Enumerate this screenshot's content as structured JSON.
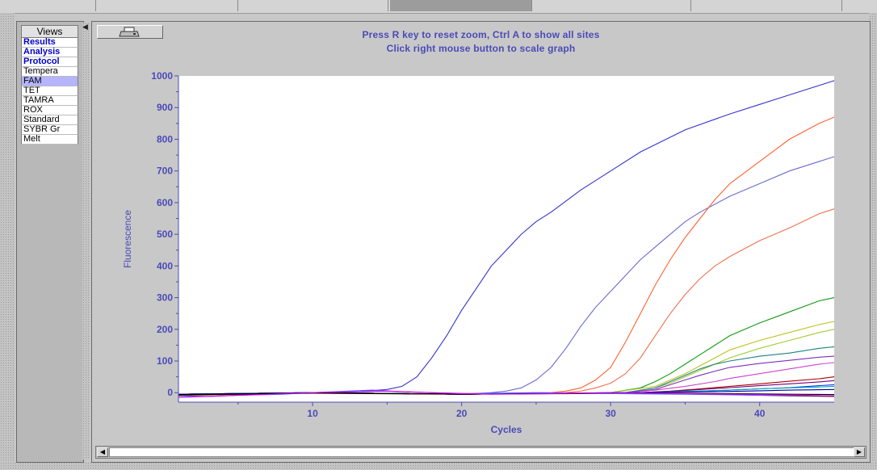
{
  "views": {
    "header": "Views",
    "items": [
      {
        "label": "Results",
        "bold": true,
        "selected": false
      },
      {
        "label": "Analysis",
        "bold": true,
        "selected": false
      },
      {
        "label": "Protocol",
        "bold": true,
        "selected": false
      },
      {
        "label": "Tempera",
        "bold": false,
        "selected": false
      },
      {
        "label": "FAM",
        "bold": false,
        "selected": true
      },
      {
        "label": "TET",
        "bold": false,
        "selected": false
      },
      {
        "label": "TAMRA",
        "bold": false,
        "selected": false
      },
      {
        "label": "ROX",
        "bold": false,
        "selected": false
      },
      {
        "label": "Standard",
        "bold": false,
        "selected": false
      },
      {
        "label": "SYBR Gr",
        "bold": false,
        "selected": false
      },
      {
        "label": "Melt",
        "bold": false,
        "selected": false
      }
    ]
  },
  "instructions": {
    "line1": "Press R key to reset zoom, Ctrl A to show all sites",
    "line2": "Click right mouse button to scale graph"
  },
  "print_icon": "printer-icon",
  "colors": {
    "selected_view": "#b4b4ff",
    "instruction_text": "#4a4ab8",
    "axis_text": "#4a4ab8"
  },
  "chart_data": {
    "type": "line",
    "xlabel": "Cycles",
    "ylabel": "Fluorescence",
    "xlim": [
      1,
      45
    ],
    "ylim": [
      -30,
      1000
    ],
    "xticks": [
      10,
      20,
      30,
      40
    ],
    "yticks": [
      0,
      100,
      200,
      300,
      400,
      500,
      600,
      700,
      800,
      900,
      1000
    ],
    "grid": false,
    "series": [
      {
        "color": "#3333cc",
        "x": [
          1,
          5,
          10,
          13,
          15,
          16,
          17,
          18,
          19,
          20,
          21,
          22,
          23,
          24,
          25,
          26,
          28,
          30,
          32,
          35,
          38,
          40,
          42,
          45
        ],
        "y": [
          -5,
          -5,
          0,
          3,
          10,
          20,
          50,
          110,
          180,
          260,
          330,
          400,
          450,
          500,
          540,
          570,
          640,
          700,
          760,
          830,
          880,
          910,
          940,
          985
        ]
      },
      {
        "color": "#6a6ad0",
        "x": [
          1,
          10,
          20,
          22,
          23,
          24,
          25,
          26,
          27,
          28,
          29,
          30,
          31,
          32,
          33,
          34,
          35,
          36,
          38,
          40,
          42,
          45
        ],
        "y": [
          -5,
          0,
          -5,
          0,
          5,
          15,
          40,
          80,
          140,
          210,
          270,
          320,
          370,
          420,
          460,
          500,
          540,
          570,
          620,
          660,
          700,
          745
        ]
      },
      {
        "color": "#ff6030",
        "x": [
          1,
          10,
          20,
          26,
          27,
          28,
          29,
          30,
          31,
          32,
          33,
          34,
          35,
          36,
          37,
          38,
          40,
          42,
          44,
          45
        ],
        "y": [
          -5,
          0,
          -5,
          0,
          5,
          15,
          40,
          80,
          160,
          250,
          340,
          420,
          490,
          550,
          610,
          660,
          730,
          800,
          850,
          870
        ]
      },
      {
        "color": "#f07050",
        "x": [
          1,
          10,
          20,
          27,
          28,
          29,
          30,
          31,
          32,
          33,
          34,
          35,
          36,
          37,
          38,
          40,
          42,
          44,
          45
        ],
        "y": [
          -5,
          0,
          -5,
          0,
          5,
          15,
          30,
          60,
          110,
          180,
          250,
          310,
          360,
          400,
          430,
          480,
          520,
          565,
          580
        ]
      },
      {
        "color": "#119911",
        "x": [
          1,
          10,
          20,
          30,
          32,
          33,
          34,
          35,
          36,
          37,
          38,
          40,
          42,
          44,
          45
        ],
        "y": [
          -5,
          0,
          -5,
          0,
          15,
          35,
          60,
          90,
          120,
          150,
          180,
          220,
          255,
          290,
          300
        ]
      },
      {
        "color": "#c0c020",
        "x": [
          1,
          10,
          20,
          30,
          33,
          34,
          35,
          36,
          37,
          38,
          40,
          42,
          44,
          45
        ],
        "y": [
          -5,
          0,
          -5,
          0,
          20,
          40,
          60,
          85,
          110,
          135,
          165,
          190,
          215,
          225
        ]
      },
      {
        "color": "#a0cc30",
        "x": [
          1,
          10,
          20,
          31,
          33,
          34,
          35,
          36,
          37,
          38,
          40,
          42,
          44,
          45
        ],
        "y": [
          -5,
          0,
          -5,
          0,
          15,
          30,
          50,
          70,
          90,
          110,
          140,
          165,
          190,
          200
        ]
      },
      {
        "color": "#208080",
        "x": [
          1,
          10,
          20,
          31,
          33,
          34,
          35,
          36,
          37,
          38,
          40,
          42,
          44,
          45
        ],
        "y": [
          -5,
          0,
          -5,
          0,
          15,
          35,
          55,
          75,
          90,
          100,
          115,
          125,
          140,
          145
        ]
      },
      {
        "color": "#7a30c0",
        "x": [
          1,
          10,
          20,
          31,
          33,
          34,
          35,
          36,
          37,
          38,
          40,
          42,
          44,
          45
        ],
        "y": [
          -5,
          0,
          -5,
          0,
          10,
          25,
          40,
          55,
          68,
          80,
          92,
          102,
          112,
          115
        ]
      },
      {
        "color": "#cc44cc",
        "x": [
          1,
          10,
          20,
          31,
          33,
          35,
          37,
          38,
          40,
          42,
          44,
          45
        ],
        "y": [
          -5,
          0,
          -5,
          0,
          8,
          20,
          35,
          45,
          60,
          75,
          90,
          95
        ]
      },
      {
        "color": "#aa0000",
        "x": [
          1,
          10,
          20,
          32,
          34,
          36,
          38,
          40,
          42,
          44,
          45
        ],
        "y": [
          -5,
          0,
          -5,
          0,
          5,
          12,
          20,
          28,
          36,
          44,
          50
        ]
      },
      {
        "color": "#770077",
        "x": [
          1,
          10,
          20,
          32,
          34,
          36,
          38,
          40,
          42,
          44,
          45
        ],
        "y": [
          -5,
          0,
          -5,
          0,
          4,
          10,
          16,
          22,
          28,
          34,
          38
        ]
      },
      {
        "color": "#0033ff",
        "x": [
          1,
          10,
          20,
          32,
          35,
          38,
          40,
          42,
          44,
          45
        ],
        "y": [
          -5,
          0,
          -5,
          0,
          3,
          8,
          12,
          16,
          22,
          25
        ]
      },
      {
        "color": "#00aaaa",
        "x": [
          1,
          10,
          20,
          32,
          35,
          38,
          40,
          42,
          44,
          45
        ],
        "y": [
          -5,
          0,
          -5,
          0,
          4,
          8,
          12,
          15,
          18,
          20
        ]
      },
      {
        "color": "#0000aa",
        "x": [
          1,
          10,
          20,
          32,
          35,
          38,
          40,
          42,
          45
        ],
        "y": [
          -5,
          0,
          -5,
          0,
          2,
          4,
          6,
          8,
          10
        ]
      },
      {
        "color": "#550000",
        "x": [
          1,
          10,
          20,
          32,
          35,
          38,
          40,
          42,
          45
        ],
        "y": [
          -8,
          -2,
          -5,
          -2,
          -4,
          -6,
          -8,
          -10,
          -12
        ]
      },
      {
        "color": "#000000",
        "x": [
          1,
          10,
          20,
          32,
          35,
          38,
          40,
          42,
          45
        ],
        "y": [
          -6,
          -1,
          -4,
          -1,
          -2,
          -3,
          -4,
          -5,
          -6
        ]
      },
      {
        "color": "#4466ff",
        "x": [
          1,
          3,
          5,
          8,
          10,
          14,
          16,
          20,
          25,
          30,
          35,
          40,
          45
        ],
        "y": [
          -10,
          -12,
          -8,
          -5,
          0,
          8,
          3,
          -3,
          0,
          -3,
          -5,
          -8,
          -10
        ]
      },
      {
        "color": "#dd00dd",
        "x": [
          1,
          4,
          7,
          10,
          13,
          15,
          18,
          22,
          26,
          30,
          35,
          40,
          45
        ],
        "y": [
          -15,
          -10,
          -5,
          0,
          3,
          5,
          0,
          -5,
          -3,
          0,
          -3,
          -6,
          -10
        ]
      }
    ]
  }
}
